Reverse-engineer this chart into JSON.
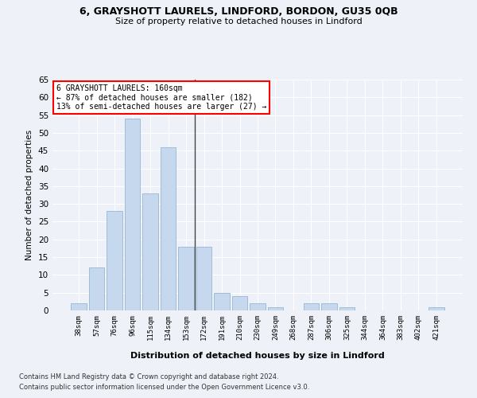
{
  "title_line1": "6, GRAYSHOTT LAURELS, LINDFORD, BORDON, GU35 0QB",
  "title_line2": "Size of property relative to detached houses in Lindford",
  "xlabel": "Distribution of detached houses by size in Lindford",
  "ylabel": "Number of detached properties",
  "categories": [
    "38sqm",
    "57sqm",
    "76sqm",
    "96sqm",
    "115sqm",
    "134sqm",
    "153sqm",
    "172sqm",
    "191sqm",
    "210sqm",
    "230sqm",
    "249sqm",
    "268sqm",
    "287sqm",
    "306sqm",
    "325sqm",
    "344sqm",
    "364sqm",
    "383sqm",
    "402sqm",
    "421sqm"
  ],
  "values": [
    2,
    12,
    28,
    54,
    33,
    46,
    18,
    18,
    5,
    4,
    2,
    1,
    0,
    2,
    2,
    1,
    0,
    0,
    0,
    0,
    1
  ],
  "bar_color": "#c5d8ed",
  "bar_edge_color": "#a0bcd8",
  "vline_color": "#444444",
  "annotation_text": "6 GRAYSHOTT LAURELS: 160sqm\n← 87% of detached houses are smaller (182)\n13% of semi-detached houses are larger (27) →",
  "annotation_box_color": "white",
  "annotation_box_edge_color": "red",
  "ylim": [
    0,
    65
  ],
  "yticks": [
    0,
    5,
    10,
    15,
    20,
    25,
    30,
    35,
    40,
    45,
    50,
    55,
    60,
    65
  ],
  "footer_line1": "Contains HM Land Registry data © Crown copyright and database right 2024.",
  "footer_line2": "Contains public sector information licensed under the Open Government Licence v3.0.",
  "bg_color": "#eef2f8",
  "plot_bg_color": "#eef2f8"
}
